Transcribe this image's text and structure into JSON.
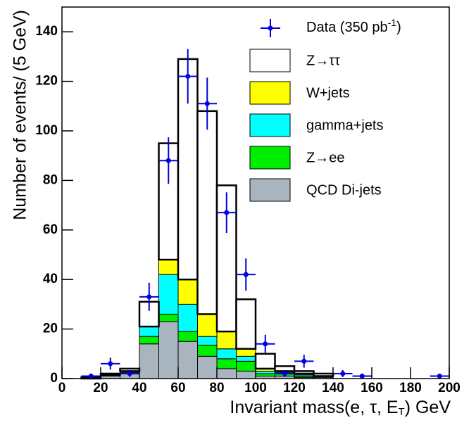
{
  "chart_data": {
    "type": "stacked-histogram",
    "x_label": [
      "Invariant mass(e, τ, E",
      "T",
      ") GeV"
    ],
    "y_label": "Number of events/ (5 GeV)",
    "bins": [
      0,
      10,
      20,
      30,
      40,
      50,
      60,
      70,
      80,
      90,
      100,
      110,
      120,
      130,
      140,
      150,
      160,
      170,
      180,
      190,
      200
    ],
    "series": [
      {
        "name": "QCD Di-jets",
        "color": "#a8b4be",
        "values": [
          0,
          0,
          1,
          2,
          14,
          23,
          15,
          9,
          4,
          3,
          1,
          1,
          0.5,
          0.5,
          0,
          0,
          0,
          0,
          0,
          0
        ]
      },
      {
        "name": "Z→ee",
        "color": "#00ee00",
        "values": [
          0,
          0,
          0,
          0.5,
          3,
          3,
          4,
          4.5,
          4,
          4,
          1,
          1,
          0.5,
          0.5,
          0,
          0,
          0,
          0,
          0,
          0
        ]
      },
      {
        "name": "gamma+jets",
        "color": "#00ffff",
        "values": [
          0,
          0,
          0.5,
          0.5,
          4,
          16,
          11,
          3.5,
          4,
          2,
          1,
          0.5,
          0.5,
          0,
          0,
          0,
          0,
          0,
          0,
          0
        ]
      },
      {
        "name": "W+jets",
        "color": "#ffff00",
        "values": [
          0,
          0,
          0,
          0,
          0,
          6,
          10,
          9,
          7,
          3,
          1,
          0.5,
          0.5,
          0,
          0,
          0,
          0,
          0,
          0,
          0
        ]
      },
      {
        "name": "Z→ττ",
        "color": "#ffffff",
        "values": [
          0,
          0.5,
          0.5,
          1,
          10,
          47,
          89,
          82,
          59,
          20,
          6,
          2,
          1,
          1,
          0,
          0,
          0,
          0,
          0,
          0
        ]
      }
    ],
    "data_points": {
      "legend_label": [
        "Data (350 pb",
        "-1",
        ")"
      ],
      "color": "#0000dd",
      "x": [
        15,
        25,
        35,
        45,
        55,
        65,
        75,
        85,
        95,
        105,
        115,
        125,
        145,
        155,
        195
      ],
      "values": [
        1,
        6,
        2,
        33,
        88,
        122,
        111,
        67,
        42,
        14,
        2,
        7,
        2,
        1,
        1
      ],
      "errors": [
        1,
        2.4,
        1.4,
        5.7,
        9.4,
        11,
        10.5,
        8.2,
        6.5,
        3.7,
        1.4,
        2.6,
        1.4,
        1,
        1
      ]
    },
    "xlim": [
      0,
      200
    ],
    "xticks": [
      0,
      20,
      40,
      60,
      80,
      100,
      120,
      140,
      160,
      180,
      200
    ],
    "ylim": [
      0,
      150
    ],
    "yticks": [
      0,
      20,
      40,
      60,
      80,
      100,
      120,
      140
    ]
  }
}
